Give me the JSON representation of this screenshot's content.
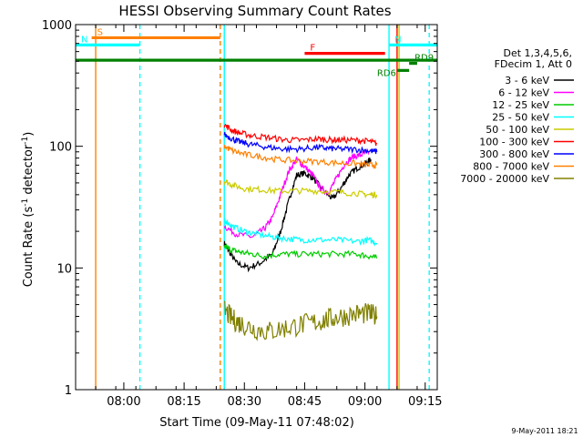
{
  "chart_data": {
    "type": "line",
    "title": "HESSI Observing Summary Count Rates",
    "xlabel": "Start Time (09-May-11 07:48:02)",
    "ylabel_main": "Count Rate (s",
    "ylabel_sup1": "-1",
    "ylabel_mid": " detector",
    "ylabel_sup2": "-1",
    "ylabel_end": ")",
    "y_scale": "log",
    "ylim": [
      1,
      1000
    ],
    "xlim_min": [
      0,
      90
    ],
    "yticks": [
      {
        "v": 1,
        "label": "1"
      },
      {
        "v": 10,
        "label": "10"
      },
      {
        "v": 100,
        "label": "100"
      },
      {
        "v": 1000,
        "label": "1000"
      }
    ],
    "xticks": [
      {
        "t": 12,
        "label": "08:00"
      },
      {
        "t": 27,
        "label": "08:15"
      },
      {
        "t": 42,
        "label": "08:30"
      },
      {
        "t": 57,
        "label": "08:45"
      },
      {
        "t": 72,
        "label": "09:00"
      },
      {
        "t": 87,
        "label": "09:15"
      }
    ],
    "legend_header": [
      "Det 1,3,4,5,6,",
      "FDecim 1, Att 0"
    ],
    "series": [
      {
        "name": "3 - 6 keV",
        "color": "#000000",
        "points": [
          [
            37,
            16
          ],
          [
            38,
            14
          ],
          [
            40,
            11
          ],
          [
            43,
            10
          ],
          [
            46,
            11
          ],
          [
            49,
            13
          ],
          [
            51,
            20
          ],
          [
            53,
            35
          ],
          [
            55,
            58
          ],
          [
            57,
            60
          ],
          [
            59,
            55
          ],
          [
            62,
            42
          ],
          [
            64,
            37
          ],
          [
            66,
            45
          ],
          [
            68,
            58
          ],
          [
            70,
            66
          ],
          [
            72,
            72
          ],
          [
            73.5,
            78
          ]
        ]
      },
      {
        "name": "6 - 12 keV",
        "color": "#ff00ff",
        "points": [
          [
            37,
            22
          ],
          [
            40,
            19
          ],
          [
            44,
            18
          ],
          [
            47,
            21
          ],
          [
            49,
            26
          ],
          [
            51,
            40
          ],
          [
            53,
            62
          ],
          [
            55,
            78
          ],
          [
            57,
            68
          ],
          [
            59,
            58
          ],
          [
            61,
            45
          ],
          [
            63,
            42
          ],
          [
            65,
            55
          ],
          [
            67,
            72
          ],
          [
            69,
            82
          ],
          [
            71,
            85
          ],
          [
            73,
            90
          ]
        ]
      },
      {
        "name": "12 - 25 keV",
        "color": "#00cc00",
        "points": [
          [
            37,
            15
          ],
          [
            39,
            14
          ],
          [
            41,
            13.5
          ],
          [
            44,
            13
          ],
          [
            47,
            12.5
          ],
          [
            51,
            13
          ],
          [
            55,
            13
          ],
          [
            60,
            13
          ],
          [
            65,
            13
          ],
          [
            70,
            13
          ],
          [
            73,
            12.5
          ],
          [
            75,
            12
          ]
        ]
      },
      {
        "name": "25 - 50 keV",
        "color": "#00ffff",
        "points": [
          [
            37,
            25
          ],
          [
            39,
            22
          ],
          [
            42,
            20
          ],
          [
            45,
            19
          ],
          [
            49,
            18
          ],
          [
            52,
            17.5
          ],
          [
            56,
            17
          ],
          [
            60,
            17
          ],
          [
            65,
            17
          ],
          [
            70,
            16.5
          ],
          [
            73,
            17
          ],
          [
            75,
            16
          ]
        ]
      },
      {
        "name": "50 - 100 keV",
        "color": "#cccc00",
        "points": [
          [
            37,
            52
          ],
          [
            39,
            48
          ],
          [
            42,
            45
          ],
          [
            46,
            44
          ],
          [
            50,
            43
          ],
          [
            55,
            43
          ],
          [
            60,
            43
          ],
          [
            65,
            42
          ],
          [
            70,
            41
          ],
          [
            73,
            40
          ],
          [
            75,
            40
          ]
        ]
      },
      {
        "name": "100 - 300 keV",
        "color": "#ff0000",
        "points": [
          [
            37,
            150
          ],
          [
            39,
            135
          ],
          [
            41,
            128
          ],
          [
            44,
            122
          ],
          [
            48,
            118
          ],
          [
            52,
            113
          ],
          [
            56,
            112
          ],
          [
            60,
            115
          ],
          [
            63,
            113
          ],
          [
            66,
            113
          ],
          [
            70,
            112
          ],
          [
            73,
            110
          ],
          [
            75,
            105
          ]
        ]
      },
      {
        "name": "300 - 800 keV",
        "color": "#0000ff",
        "points": [
          [
            37,
            125
          ],
          [
            39,
            115
          ],
          [
            41,
            108
          ],
          [
            44,
            103
          ],
          [
            48,
            98
          ],
          [
            52,
            95
          ],
          [
            56,
            95
          ],
          [
            60,
            98
          ],
          [
            63,
            96
          ],
          [
            66,
            95
          ],
          [
            70,
            94
          ],
          [
            73,
            92
          ],
          [
            75,
            90
          ]
        ]
      },
      {
        "name": "800 - 7000 keV",
        "color": "#ff8000",
        "points": [
          [
            37,
            100
          ],
          [
            39,
            92
          ],
          [
            42,
            86
          ],
          [
            46,
            82
          ],
          [
            50,
            78
          ],
          [
            55,
            76
          ],
          [
            60,
            75
          ],
          [
            65,
            73
          ],
          [
            70,
            72
          ],
          [
            73,
            70
          ],
          [
            75,
            70
          ]
        ]
      },
      {
        "name": "7000 - 20000 keV",
        "color": "#808000",
        "points": [
          [
            37,
            4.5
          ],
          [
            39,
            3.8
          ],
          [
            41,
            3.5
          ],
          [
            44,
            3.2
          ],
          [
            48,
            3.0
          ],
          [
            52,
            3.2
          ],
          [
            56,
            3.4
          ],
          [
            60,
            3.6
          ],
          [
            63,
            3.8
          ],
          [
            66,
            4.0
          ],
          [
            70,
            4.2
          ],
          [
            73,
            4.2
          ],
          [
            75,
            4.0
          ]
        ]
      }
    ],
    "flag_bars": [
      {
        "label": "S",
        "color": "#ff8000",
        "y": 780,
        "t0": 4,
        "t1": 36
      },
      {
        "label": "N",
        "color": "#00ffff",
        "y": 680,
        "t0": 0,
        "t1": 16
      },
      {
        "label": "N",
        "color": "#00ffff",
        "y": 680,
        "t0": 78,
        "t1": 90
      },
      {
        "label": "F",
        "color": "#ff0000",
        "y": 580,
        "t0": 57,
        "t1": 77
      },
      {
        "label": "",
        "color": "#008000",
        "y": 510,
        "t0": 0,
        "t1": 90
      },
      {
        "label": "RD6",
        "color": "#008000",
        "y": 420,
        "t0": 80,
        "t1": 83
      },
      {
        "label": "RD9",
        "color": "#008000",
        "y": 480,
        "t0": 83,
        "t1": 85
      }
    ],
    "vlines": [
      {
        "t": 5,
        "color": "#ff8000",
        "style": "solid"
      },
      {
        "t": 16,
        "color": "#00ffff",
        "style": "dashed"
      },
      {
        "t": 36,
        "color": "#ff8000",
        "style": "dashed"
      },
      {
        "t": 37,
        "color": "#00ffff",
        "style": "solid"
      },
      {
        "t": 78,
        "color": "#00ffff",
        "style": "solid"
      },
      {
        "t": 80.5,
        "color": "#cccc00",
        "style": "solid"
      },
      {
        "t": 80,
        "color": "#ff0000",
        "style": "solid"
      },
      {
        "t": 88,
        "color": "#00ffff",
        "style": "dashed"
      }
    ],
    "footer_date": "9-May-2011 18:21"
  }
}
